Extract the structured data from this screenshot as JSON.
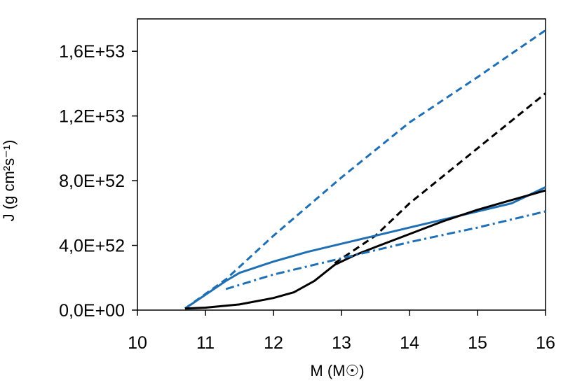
{
  "chart_data": {
    "type": "line",
    "xlabel": "M (M☉)",
    "ylabel": "J (g cm²s⁻¹)",
    "xlim": [
      10,
      16
    ],
    "ylim": [
      0,
      1.8e+53
    ],
    "x_ticks": [
      10,
      11,
      12,
      13,
      14,
      15,
      16
    ],
    "x_tick_labels": [
      "10",
      "11",
      "12",
      "13",
      "14",
      "15",
      "16"
    ],
    "y_ticks": [
      0,
      4e+52,
      8e+52,
      1.2e+53,
      1.6e+53
    ],
    "y_tick_labels": [
      "0,0E+00",
      "4,0E+52",
      "8,0E+52",
      "1,2E+53",
      "1,6E+53"
    ],
    "grid": false,
    "legend": "none",
    "series": [
      {
        "color": "#1f6fb4",
        "style": "dashed",
        "x": [
          10.7,
          11.3,
          12,
          13,
          14,
          15,
          16
        ],
        "y": [
          1e+51,
          1.9e+52,
          4.6e+52,
          8.2e+52,
          1.16e+53,
          1.44e+53,
          1.73e+53
        ]
      },
      {
        "color": "#000000",
        "style": "dashed",
        "x": [
          12.9,
          13.5,
          14,
          14.5,
          15,
          15.5,
          16
        ],
        "y": [
          2.9e+52,
          4.6e+52,
          6.6e+52,
          8.3e+52,
          1e+53,
          1.17e+53,
          1.34e+53
        ]
      },
      {
        "color": "#1f6fb4",
        "style": "solid",
        "x": [
          10.7,
          11.3,
          11.5,
          12,
          12.5,
          13,
          13.5,
          14,
          14.5,
          15,
          15.5,
          16
        ],
        "y": [
          1e+51,
          1.8e+52,
          2.3e+52,
          3e+52,
          3.6e+52,
          4.1e+52,
          4.6e+52,
          5.1e+52,
          5.6e+52,
          6.1e+52,
          6.6e+52,
          7.6e+52
        ]
      },
      {
        "color": "#000000",
        "style": "solid",
        "x": [
          10.7,
          11,
          11.5,
          12,
          12.3,
          12.6,
          12.9,
          13.2,
          13.5,
          14,
          14.5,
          15,
          15.5,
          16
        ],
        "y": [
          1e+51,
          1.5e+51,
          3.5e+51,
          7.5e+51,
          1.1e+52,
          1.8e+52,
          2.8e+52,
          3.4e+52,
          3.9e+52,
          4.7e+52,
          5.5e+52,
          6.2e+52,
          6.8e+52,
          7.4e+52
        ]
      },
      {
        "color": "#1f6fb4",
        "style": "dashdot",
        "x": [
          11.3,
          12,
          13,
          14,
          15,
          16
        ],
        "y": [
          1.3e+52,
          2.2e+52,
          3.2e+52,
          4.2e+52,
          5.1e+52,
          6.1e+52
        ]
      }
    ]
  }
}
